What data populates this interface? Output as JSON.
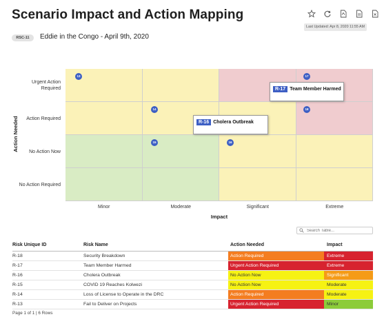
{
  "header": {
    "title": "Scenario Impact and Action Mapping",
    "last_updated": "Last Updated: Apr 8, 2020 11:55 AM",
    "scenario_code": "RSC-11",
    "scenario_name": "Eddie in the Congo - April 9th, 2020"
  },
  "toolbar": {
    "icons": [
      "star-icon",
      "refresh-icon",
      "pdf-export-icon",
      "document-export-icon",
      "excel-export-icon"
    ]
  },
  "matrix": {
    "y_axis_title": "Action Needed",
    "x_axis_title": "Impact",
    "rows": [
      "Urgent Action Required",
      "Action Required",
      "No Action Now",
      "No Action Required"
    ],
    "columns": [
      "Minor",
      "Moderate",
      "Significant",
      "Extreme"
    ],
    "colors": {
      "yellow": "#fbf2b8",
      "red": "#f0cccf",
      "green": "#d9ecc4"
    },
    "points": [
      {
        "id": "13",
        "row": "Urgent Action Required",
        "column": "Minor"
      },
      {
        "id": "17",
        "row": "Urgent Action Required",
        "column": "Extreme"
      },
      {
        "id": "14",
        "row": "Action Required",
        "column": "Moderate"
      },
      {
        "id": "18",
        "row": "Action Required",
        "column": "Extreme"
      },
      {
        "id": "15",
        "row": "No Action Now",
        "column": "Moderate"
      },
      {
        "id": "16",
        "row": "No Action Now",
        "column": "Significant"
      }
    ],
    "tooltips": [
      {
        "id": "R-17",
        "name": "Team Member Harmed"
      },
      {
        "id": "R-16",
        "name": "Cholera Outbreak"
      }
    ]
  },
  "search": {
    "placeholder": "Search Table..."
  },
  "table": {
    "headers": [
      "Risk Unique ID",
      "Risk Name",
      "Action Needed",
      "Impact"
    ],
    "rows": [
      {
        "id": "R-18",
        "name": "Security Breakdown",
        "action": "Action Required",
        "impact": "Extreme"
      },
      {
        "id": "R-17",
        "name": "Team Member Harmed",
        "action": "Urgent Action Required",
        "impact": "Extreme"
      },
      {
        "id": "R-16",
        "name": "Cholera Outbreak",
        "action": "No Action Now",
        "impact": "Significant"
      },
      {
        "id": "R-15",
        "name": "COVID 19 Reaches Kolwezi",
        "action": "No Action Now",
        "impact": "Moderate"
      },
      {
        "id": "R-14",
        "name": "Loss of License to Operate in the DRC",
        "action": "Action Required",
        "impact": "Moderate"
      },
      {
        "id": "R-13",
        "name": "Fail to Deliver on Projects",
        "action": "Urgent Action Required",
        "impact": "Minor"
      }
    ],
    "status_colors": {
      "Urgent Action Required": "#d7232f",
      "Action Required": "#f47d20",
      "No Action Now": "#f6f213",
      "Extreme": "#d7232f",
      "Significant": "#f59b16",
      "Moderate": "#f6f213",
      "Minor": "#8ccc39"
    },
    "footer": "Page 1 of 1 | 6 Rows"
  }
}
